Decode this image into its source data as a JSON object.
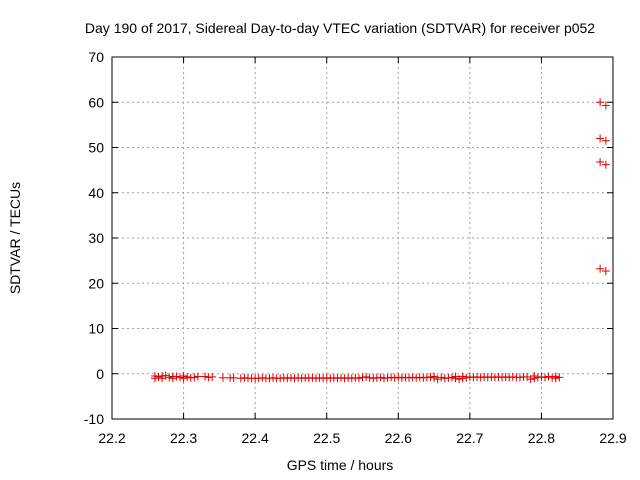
{
  "chart_data": {
    "type": "scatter",
    "title": "Day 190 of 2017, Sidereal Day-to-day VTEC variation (SDTVAR) for receiver p052",
    "xlabel": "GPS time / hours",
    "ylabel": "SDTVAR / TECUs",
    "xlim": [
      22.2,
      22.9
    ],
    "ylim": [
      -10,
      70
    ],
    "grid": true,
    "x_ticks": [
      "22.2",
      "22.3",
      "22.4",
      "22.5",
      "22.6",
      "22.7",
      "22.8",
      "22.9"
    ],
    "y_ticks": [
      "-10",
      "0",
      "10",
      "20",
      "30",
      "40",
      "50",
      "60",
      "70"
    ],
    "marker": "+",
    "color": "#e00000",
    "series": [
      {
        "name": "SDTVAR",
        "points": [
          [
            22.26,
            -0.5
          ],
          [
            22.26,
            -1.0
          ],
          [
            22.265,
            -0.7
          ],
          [
            22.27,
            -0.5
          ],
          [
            22.27,
            -1.0
          ],
          [
            22.275,
            -0.4
          ],
          [
            22.28,
            -0.8
          ],
          [
            22.285,
            -0.6
          ],
          [
            22.285,
            -1.0
          ],
          [
            22.29,
            -0.6
          ],
          [
            22.295,
            -0.8
          ],
          [
            22.3,
            -0.5
          ],
          [
            22.3,
            -1.0
          ],
          [
            22.305,
            -0.7
          ],
          [
            22.31,
            -0.9
          ],
          [
            22.315,
            -0.8
          ],
          [
            22.32,
            -0.6
          ],
          [
            22.33,
            -0.6
          ],
          [
            22.335,
            -0.8
          ],
          [
            22.34,
            -0.7
          ],
          [
            22.355,
            -0.9
          ],
          [
            22.365,
            -0.9
          ],
          [
            22.37,
            -0.9
          ],
          [
            22.38,
            -1.0
          ],
          [
            22.385,
            -0.9
          ],
          [
            22.39,
            -1.0
          ],
          [
            22.395,
            -1.0
          ],
          [
            22.4,
            -1.0
          ],
          [
            22.405,
            -1.0
          ],
          [
            22.41,
            -0.9
          ],
          [
            22.415,
            -1.0
          ],
          [
            22.42,
            -1.0
          ],
          [
            22.425,
            -0.9
          ],
          [
            22.43,
            -1.0
          ],
          [
            22.435,
            -1.0
          ],
          [
            22.44,
            -0.9
          ],
          [
            22.445,
            -1.0
          ],
          [
            22.45,
            -0.9
          ],
          [
            22.455,
            -1.0
          ],
          [
            22.46,
            -0.9
          ],
          [
            22.465,
            -1.0
          ],
          [
            22.47,
            -0.9
          ],
          [
            22.475,
            -1.0
          ],
          [
            22.48,
            -0.9
          ],
          [
            22.485,
            -1.0
          ],
          [
            22.49,
            -0.9
          ],
          [
            22.495,
            -1.0
          ],
          [
            22.5,
            -0.9
          ],
          [
            22.505,
            -1.0
          ],
          [
            22.51,
            -0.9
          ],
          [
            22.515,
            -1.0
          ],
          [
            22.52,
            -0.9
          ],
          [
            22.525,
            -1.0
          ],
          [
            22.53,
            -0.9
          ],
          [
            22.535,
            -1.0
          ],
          [
            22.54,
            -0.9
          ],
          [
            22.545,
            -1.0
          ],
          [
            22.55,
            -0.8
          ],
          [
            22.555,
            -0.7
          ],
          [
            22.56,
            -0.9
          ],
          [
            22.565,
            -1.0
          ],
          [
            22.57,
            -0.9
          ],
          [
            22.575,
            -0.8
          ],
          [
            22.58,
            -1.0
          ],
          [
            22.585,
            -0.9
          ],
          [
            22.59,
            -0.8
          ],
          [
            22.595,
            -0.9
          ],
          [
            22.6,
            -0.8
          ],
          [
            22.605,
            -0.9
          ],
          [
            22.61,
            -0.8
          ],
          [
            22.615,
            -0.9
          ],
          [
            22.62,
            -0.8
          ],
          [
            22.625,
            -0.9
          ],
          [
            22.63,
            -0.8
          ],
          [
            22.635,
            -0.9
          ],
          [
            22.64,
            -0.8
          ],
          [
            22.645,
            -0.7
          ],
          [
            22.65,
            -0.6
          ],
          [
            22.65,
            -0.9
          ],
          [
            22.655,
            -1.2
          ],
          [
            22.66,
            -0.8
          ],
          [
            22.665,
            -1.0
          ],
          [
            22.67,
            -0.9
          ],
          [
            22.675,
            -0.8
          ],
          [
            22.68,
            -0.6
          ],
          [
            22.68,
            -1.0
          ],
          [
            22.685,
            -1.2
          ],
          [
            22.69,
            -0.6
          ],
          [
            22.69,
            -1.0
          ],
          [
            22.695,
            -0.9
          ],
          [
            22.7,
            -0.7
          ],
          [
            22.705,
            -0.8
          ],
          [
            22.71,
            -0.7
          ],
          [
            22.715,
            -0.8
          ],
          [
            22.72,
            -0.7
          ],
          [
            22.725,
            -0.8
          ],
          [
            22.73,
            -0.7
          ],
          [
            22.735,
            -0.8
          ],
          [
            22.74,
            -0.7
          ],
          [
            22.745,
            -0.8
          ],
          [
            22.75,
            -0.7
          ],
          [
            22.755,
            -0.8
          ],
          [
            22.76,
            -0.7
          ],
          [
            22.765,
            -0.8
          ],
          [
            22.77,
            -0.8
          ],
          [
            22.775,
            -0.7
          ],
          [
            22.78,
            -0.7
          ],
          [
            22.785,
            -1.2
          ],
          [
            22.79,
            -0.5
          ],
          [
            22.79,
            -1.0
          ],
          [
            22.795,
            -0.8
          ],
          [
            22.8,
            -0.7
          ],
          [
            22.805,
            -0.8
          ],
          [
            22.81,
            -0.6
          ],
          [
            22.815,
            -0.9
          ],
          [
            22.82,
            -0.6
          ],
          [
            22.82,
            -1.0
          ],
          [
            22.825,
            -0.8
          ],
          [
            22.882,
            60.0
          ],
          [
            22.89,
            59.3
          ],
          [
            22.882,
            52.0
          ],
          [
            22.89,
            51.5
          ],
          [
            22.882,
            46.8
          ],
          [
            22.89,
            46.2
          ],
          [
            22.882,
            23.2
          ],
          [
            22.89,
            22.7
          ]
        ]
      }
    ]
  }
}
